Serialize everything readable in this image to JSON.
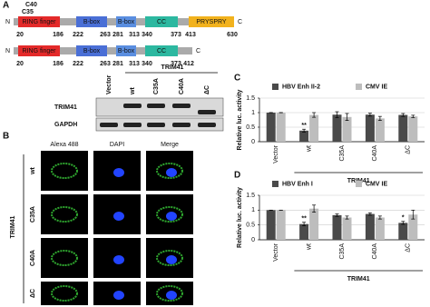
{
  "panel_a": {
    "label": "A",
    "site_labels": [
      "C40",
      "C35"
    ],
    "constructs": [
      {
        "n": "N",
        "c": "C",
        "domains": [
          {
            "name": "RING finger",
            "start": 20,
            "end": 186
          },
          {
            "name": "B-box",
            "start": 222,
            "end": 263
          },
          {
            "name": "B-box",
            "start": 281,
            "end": 313
          },
          {
            "name": "CC",
            "start": 340,
            "end": 373
          },
          {
            "name": "PRYSPRY",
            "start": 413,
            "end": 630
          }
        ]
      },
      {
        "n": "N",
        "c": "C",
        "end": 412,
        "domains": [
          {
            "name": "RING finger",
            "start": 20,
            "end": 186
          },
          {
            "name": "B-box",
            "start": 222,
            "end": 263
          },
          {
            "name": "B-box",
            "start": 281,
            "end": 313
          },
          {
            "name": "CC",
            "start": 340,
            "end": 373
          }
        ]
      }
    ]
  },
  "blot": {
    "lanes": [
      "Vector",
      "wt",
      "C35A",
      "C40A",
      "ΔC"
    ],
    "group": "TRIM41",
    "rows": [
      "TRIM41",
      "GAPDH"
    ]
  },
  "panel_b": {
    "label": "B",
    "columns": [
      "Alexa 488",
      "DAPI",
      "Merge"
    ],
    "rows": [
      "wt",
      "C35A",
      "C40A",
      "ΔC"
    ],
    "group": "TRIM41"
  },
  "chart_data": [
    {
      "type": "bar",
      "panel": "C",
      "ylabel": "Relative luc. activity",
      "xlabel": "TRIM41",
      "categories": [
        "Vector",
        "wt",
        "C35A",
        "C40A",
        "ΔC"
      ],
      "series": [
        {
          "name": "HBV Enh II-2",
          "color": "#4a4a4a",
          "values": [
            1,
            0.38,
            0.93,
            0.93,
            0.92
          ],
          "errors": [
            0,
            0.05,
            0.1,
            0.05,
            0.05
          ],
          "significance": [
            null,
            "**",
            null,
            null,
            null
          ]
        },
        {
          "name": "CMV IE",
          "color": "#bdbdbd",
          "values": [
            1,
            0.92,
            0.85,
            0.8,
            0.87
          ],
          "errors": [
            0,
            0.08,
            0.12,
            0.07,
            0.04
          ],
          "significance": [
            null,
            null,
            null,
            null,
            null
          ]
        }
      ],
      "ylim": [
        0,
        1.5
      ],
      "yticks": [
        0,
        0.5,
        1,
        1.5
      ],
      "grid": true,
      "legend": "top"
    },
    {
      "type": "bar",
      "panel": "D",
      "ylabel": "Relative luc. activity",
      "xlabel": "TRIM41",
      "categories": [
        "Vector",
        "wt",
        "C35A",
        "C40A",
        "ΔC"
      ],
      "series": [
        {
          "name": "HBV Enh I",
          "color": "#4a4a4a",
          "values": [
            1,
            0.53,
            0.83,
            0.87,
            0.57
          ],
          "errors": [
            0,
            0.06,
            0.04,
            0.04,
            0.05
          ],
          "significance": [
            null,
            "**",
            null,
            null,
            "*"
          ]
        },
        {
          "name": "CMV IE",
          "color": "#bdbdbd",
          "values": [
            1,
            1.05,
            0.75,
            0.75,
            0.85
          ],
          "errors": [
            0,
            0.12,
            0.05,
            0.05,
            0.15
          ],
          "significance": [
            null,
            null,
            null,
            null,
            null
          ]
        }
      ],
      "ylim": [
        0,
        1.5
      ],
      "yticks": [
        0,
        0.5,
        1,
        1.5
      ],
      "grid": true,
      "legend": "top"
    }
  ]
}
